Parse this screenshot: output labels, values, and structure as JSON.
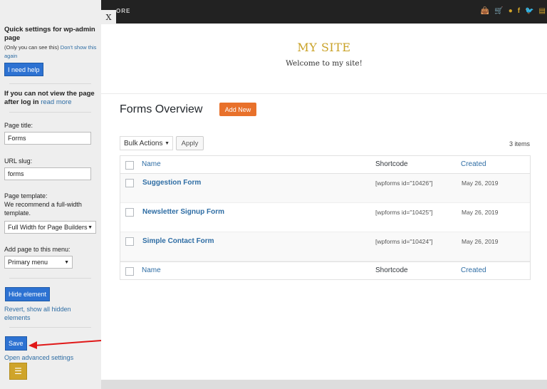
{
  "sidebar": {
    "title": "Quick settings for wp-admin page",
    "note": "(Only you can see this)",
    "dont_show": "Don't show this again",
    "help_button": "I need help",
    "login_text": "If you can not view the page after log in",
    "read_more": "read more",
    "page_title_label": "Page title:",
    "page_title_value": "Forms",
    "url_slug_label": "URL slug:",
    "url_slug_value": "forms",
    "template_label": "Page template:",
    "template_hint": "We recommend a full-width template.",
    "template_value": "Full Width for Page Builders",
    "menu_label": "Add page to this menu:",
    "menu_value": "Primary menu",
    "hide_button": "Hide element",
    "revert_link": "Revert, show all hidden elements",
    "save_button": "Save",
    "advanced_link": "Open advanced settings",
    "close_tab": "X"
  },
  "topbar": {
    "menu_text": "ORE",
    "icons": [
      "shopping-bag-icon",
      "cart-icon",
      "user-icon",
      "facebook-icon",
      "twitter-icon",
      "basket-icon"
    ],
    "icon_color": "#d4a52a"
  },
  "site": {
    "title": "MY SITE",
    "tagline": "Welcome to my site!",
    "title_color": "#c9a227"
  },
  "main": {
    "heading": "Forms Overview",
    "add_new": "Add New",
    "bulk_actions": "Bulk Actions",
    "apply": "Apply",
    "count": "3 items",
    "columns": {
      "name": "Name",
      "shortcode": "Shortcode",
      "created": "Created"
    },
    "rows": [
      {
        "name": "Suggestion Form",
        "shortcode": "[wpforms id=\"10426\"]",
        "created": "May 26, 2019"
      },
      {
        "name": "Newsletter Signup Form",
        "shortcode": "[wpforms id=\"10425\"]",
        "created": "May 26, 2019"
      },
      {
        "name": "Simple Contact Form",
        "shortcode": "[wpforms id=\"10424\"]",
        "created": "May 26, 2019"
      }
    ]
  },
  "colors": {
    "accent_orange": "#e8712b",
    "button_blue": "#2d72d2",
    "link": "#2e6da4"
  }
}
